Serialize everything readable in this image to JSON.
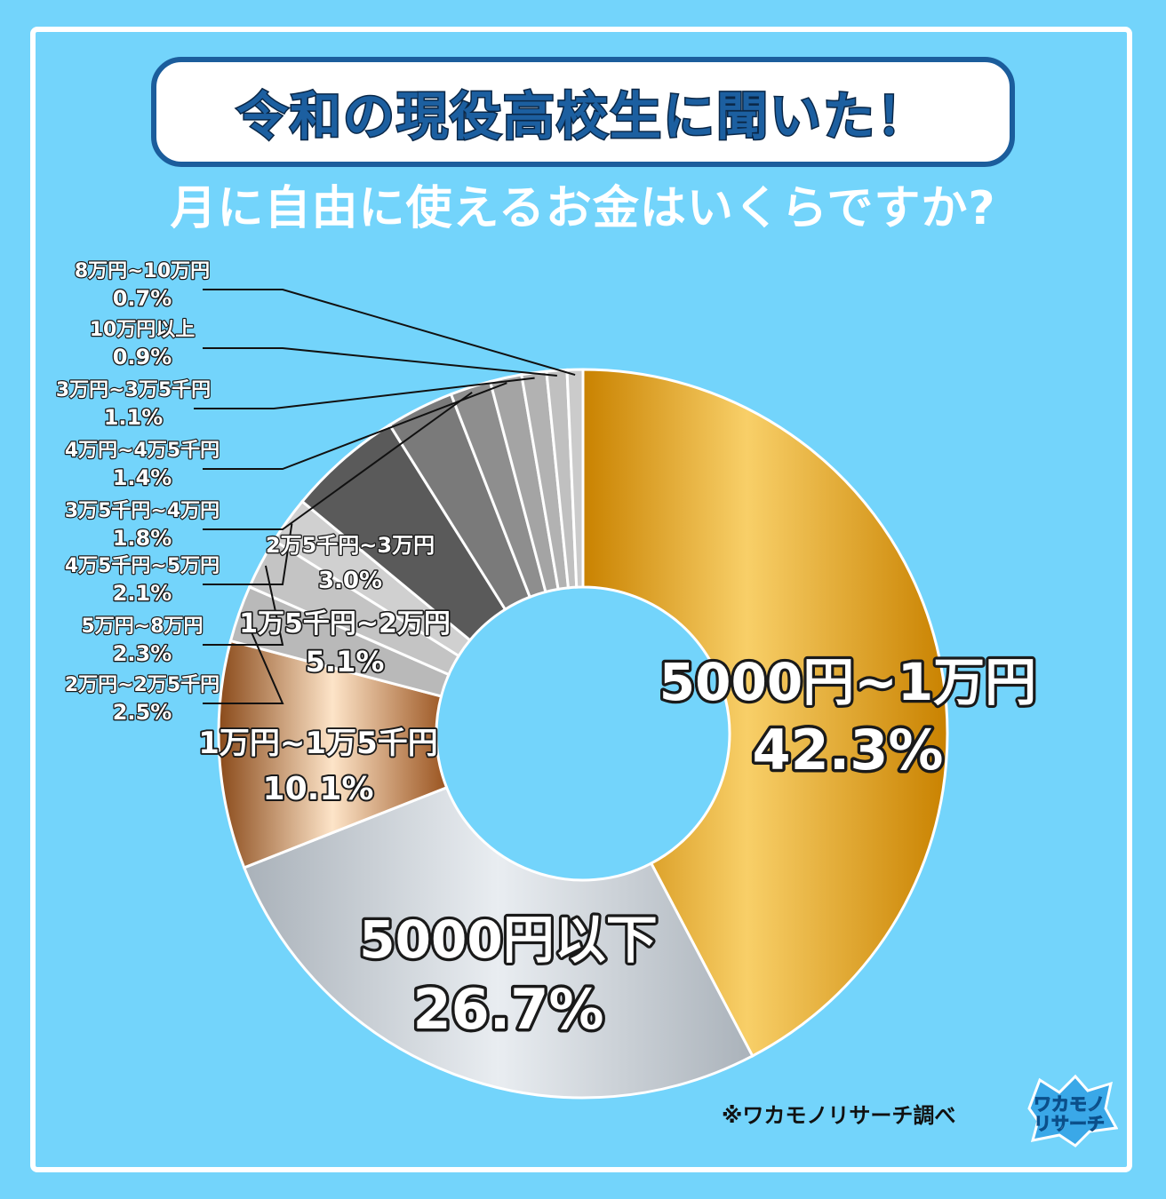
{
  "header": {
    "banner": "令和の現役高校生に聞いた！",
    "subtitle": "月に自由に使えるお金はいくらですか?"
  },
  "footer": {
    "credit": "※ワカモノリサーチ調べ",
    "logo_text_top": "ワカモノ",
    "logo_text_bottom": "リサーチ"
  },
  "chart_data": {
    "type": "pie",
    "donut": true,
    "labels": [
      "5000円~1万円",
      "5000円以下",
      "1万円~1万5千円",
      "2万円~2万5千円",
      "5万円~8万円",
      "4万5千円~5万円",
      "1万5千円~2万円",
      "2万5千円~3万円",
      "3万5千円~4万円",
      "4万円~4万5千円",
      "3万円~3万5千円",
      "10万円以上",
      "8万円~10万円"
    ],
    "values": [
      42.3,
      26.7,
      10.1,
      2.5,
      2.3,
      2.1,
      5.1,
      3.0,
      1.8,
      1.4,
      1.1,
      0.9,
      0.7
    ],
    "value_labels": [
      "42.3%",
      "26.7%",
      "10.1%",
      "2.5%",
      "2.3%",
      "2.1%",
      "5.1%",
      "3.0%",
      "1.8%",
      "1.4%",
      "1.1%",
      "0.9%",
      "0.7%"
    ],
    "colors": [
      "#e8aa22",
      "#c6ccd2",
      "#e3a06a",
      "#b9b9b9",
      "#c4c4c4",
      "#d0d0d0",
      "#5a5a5a",
      "#7a7a7a",
      "#8e8e8e",
      "#a4a4a4",
      "#b2b2b2",
      "#c0c0c0",
      "#cbcbcb"
    ],
    "colors_extra": [
      "#d8d8d8",
      "#e2e2e2",
      "#9a9a9a"
    ],
    "extra_values": [
      0,
      0,
      0
    ]
  }
}
